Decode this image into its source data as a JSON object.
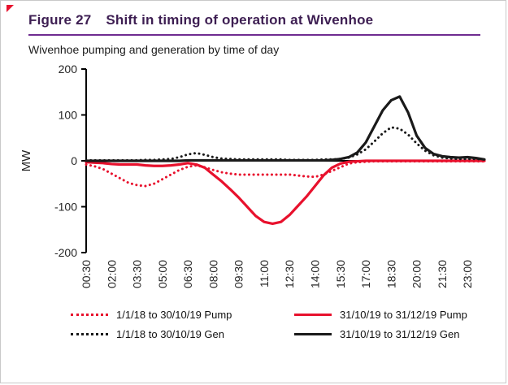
{
  "figure": {
    "label": "Figure 27",
    "title": "Shift in timing of operation at Wivenhoe",
    "subtitle": "Wivenhoe pumping and generation by time of day"
  },
  "colors": {
    "pump_red": "#e8112d",
    "gen_black": "#1a1a1a",
    "title_purple": "#3d1e52",
    "rule_purple": "#6f2c91"
  },
  "chart_data": {
    "type": "line",
    "title": "Wivenhoe pumping and generation by time of day",
    "xlabel": "",
    "ylabel": "MW",
    "ylim": [
      -200,
      200
    ],
    "yticks": [
      200,
      100,
      0,
      -100,
      -200
    ],
    "grid": false,
    "legend_position": "bottom",
    "x": [
      "00:30",
      "01:00",
      "01:30",
      "02:00",
      "02:30",
      "03:00",
      "03:30",
      "04:00",
      "04:30",
      "05:00",
      "05:30",
      "06:00",
      "06:30",
      "07:00",
      "07:30",
      "08:00",
      "08:30",
      "09:00",
      "09:30",
      "10:00",
      "10:30",
      "11:00",
      "11:30",
      "12:00",
      "12:30",
      "13:00",
      "13:30",
      "14:00",
      "14:30",
      "15:00",
      "15:30",
      "16:00",
      "16:30",
      "17:00",
      "17:30",
      "18:00",
      "18:30",
      "19:00",
      "19:30",
      "20:00",
      "20:30",
      "21:00",
      "21:30",
      "22:00",
      "22:30",
      "23:00",
      "23:30",
      "24:00"
    ],
    "xtick_labels": [
      "00:30",
      "02:00",
      "03:30",
      "05:00",
      "06:30",
      "08:00",
      "09:30",
      "11:00",
      "12:30",
      "14:00",
      "15:30",
      "17:00",
      "18:30",
      "20:00",
      "21:30",
      "23:00"
    ],
    "series": [
      {
        "name": "1/1/18 to 30/10/19 Pump",
        "color": "#e8112d",
        "style": "dotted",
        "values": [
          -8,
          -12,
          -18,
          -28,
          -38,
          -48,
          -53,
          -55,
          -50,
          -40,
          -30,
          -20,
          -13,
          -10,
          -14,
          -20,
          -25,
          -28,
          -30,
          -30,
          -30,
          -30,
          -30,
          -30,
          -30,
          -32,
          -34,
          -35,
          -30,
          -22,
          -14,
          -6,
          -3,
          -2,
          -1,
          -1,
          -1,
          -1,
          -1,
          -1,
          -1,
          -1,
          -1,
          -1,
          -1,
          -1,
          -1,
          -1
        ]
      },
      {
        "name": "31/10/19 to 31/12/19 Pump",
        "color": "#e8112d",
        "style": "solid",
        "values": [
          -3,
          -4,
          -5,
          -7,
          -8,
          -8,
          -8,
          -10,
          -11,
          -11,
          -10,
          -8,
          -5,
          -8,
          -15,
          -30,
          -45,
          -62,
          -80,
          -100,
          -120,
          -133,
          -137,
          -133,
          -118,
          -98,
          -78,
          -55,
          -32,
          -15,
          -6,
          -2,
          -1,
          0,
          0,
          0,
          0,
          0,
          0,
          0,
          0,
          0,
          0,
          0,
          0,
          0,
          0,
          0
        ]
      },
      {
        "name": "1/1/18 to 30/10/19 Gen",
        "color": "#1a1a1a",
        "style": "dotted",
        "values": [
          1,
          1,
          1,
          1,
          1,
          1,
          1,
          2,
          2,
          3,
          4,
          8,
          14,
          17,
          13,
          8,
          5,
          4,
          3,
          3,
          3,
          3,
          3,
          3,
          2,
          2,
          2,
          2,
          3,
          3,
          4,
          7,
          14,
          25,
          42,
          60,
          73,
          70,
          57,
          38,
          22,
          12,
          7,
          5,
          4,
          4,
          4,
          3
        ]
      },
      {
        "name": "31/10/19 to 31/12/19 Gen",
        "color": "#1a1a1a",
        "style": "solid",
        "values": [
          0,
          0,
          0,
          0,
          0,
          0,
          0,
          0,
          0,
          0,
          0,
          0,
          1,
          1,
          1,
          1,
          1,
          1,
          1,
          1,
          1,
          1,
          1,
          1,
          1,
          1,
          1,
          1,
          1,
          2,
          4,
          8,
          18,
          40,
          75,
          110,
          132,
          140,
          105,
          55,
          28,
          15,
          10,
          8,
          7,
          8,
          6,
          3
        ]
      }
    ]
  },
  "legend": {
    "items": [
      {
        "label": "1/1/18 to 30/10/19 Pump",
        "color": "#e8112d",
        "style": "dotted"
      },
      {
        "label": "31/10/19 to 31/12/19 Pump",
        "color": "#e8112d",
        "style": "solid"
      },
      {
        "label": "1/1/18 to 30/10/19 Gen",
        "color": "#1a1a1a",
        "style": "dotted"
      },
      {
        "label": "31/10/19 to 31/12/19 Gen",
        "color": "#1a1a1a",
        "style": "solid"
      }
    ]
  }
}
